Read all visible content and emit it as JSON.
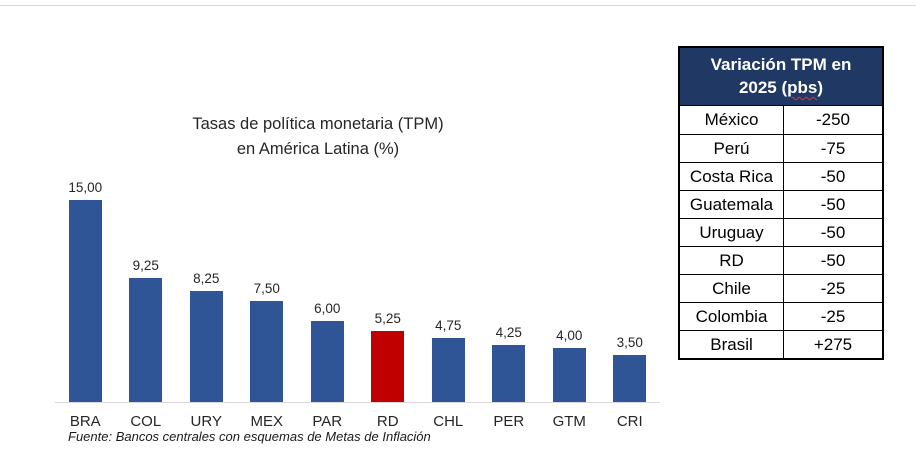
{
  "colors": {
    "bar_blue": "#2f5597",
    "bar_red": "#c00000",
    "table_header_bg": "#1f3864",
    "table_header_text": "#ffffff",
    "axis_line": "#d9d9d9",
    "top_divider": "#d6d6d6",
    "text_dark": "#262626"
  },
  "chart_data": {
    "type": "bar",
    "title_line1": "Tasas de política monetaria (TPM)",
    "title_line2": "en América Latina (%)",
    "categories": [
      "BRA",
      "COL",
      "URY",
      "MEX",
      "PAR",
      "RD",
      "CHL",
      "PER",
      "GTM",
      "CRI"
    ],
    "values": [
      15.0,
      9.25,
      8.25,
      7.5,
      6.0,
      5.25,
      4.75,
      4.25,
      4.0,
      3.5
    ],
    "value_labels": [
      "15,00",
      "9,25",
      "8,25",
      "7,50",
      "6,00",
      "5,25",
      "4,75",
      "4,25",
      "4,00",
      "3,50"
    ],
    "highlight_category": "RD",
    "ylim": [
      0,
      16
    ],
    "grid": false,
    "legend": false,
    "data_labels": true,
    "source_note": "Fuente: Bancos centrales con esquemas de Metas de Inflación"
  },
  "table": {
    "header_line1": "Variación TPM en",
    "header_line2_prefix": "2025 (",
    "header_line2_misspelled": "pbs",
    "header_line2_suffix": ")",
    "rows": [
      {
        "country": "México",
        "variation": "-250"
      },
      {
        "country": "Perú",
        "variation": "-75"
      },
      {
        "country": "Costa Rica",
        "variation": "-50"
      },
      {
        "country": "Guatemala",
        "variation": "-50"
      },
      {
        "country": "Uruguay",
        "variation": "-50"
      },
      {
        "country": "RD",
        "variation": "-50"
      },
      {
        "country": "Chile",
        "variation": "-25"
      },
      {
        "country": "Colombia",
        "variation": "-25"
      },
      {
        "country": "Brasil",
        "variation": "+275"
      }
    ]
  }
}
